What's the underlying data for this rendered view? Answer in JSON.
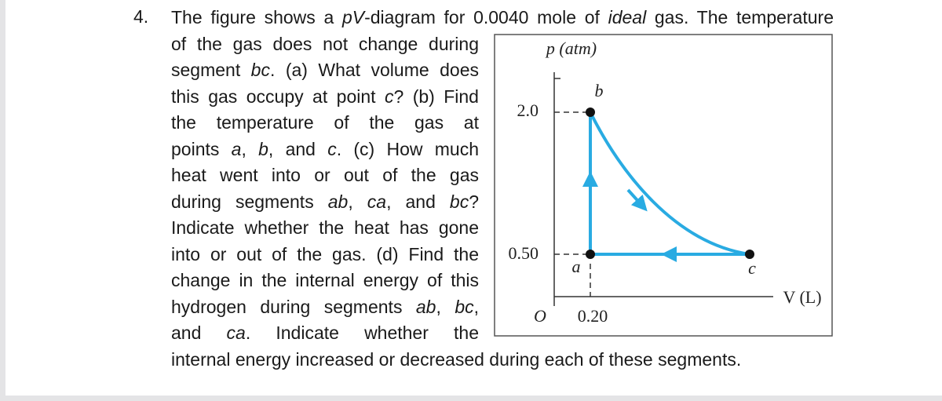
{
  "problem": {
    "number": "4.",
    "lines": [
      [
        "The figure shows a ",
        {
          "text": "pV",
          "style": "italic"
        },
        "-diagram for 0.0040 mole of ",
        {
          "text": "ideal",
          "style": "italic"
        },
        " gas. The temperature"
      ],
      [
        "of the gas does not change during"
      ],
      [
        "segment ",
        {
          "text": "bc",
          "style": "italic"
        },
        ". (a) What volume does"
      ],
      [
        "this gas occupy at point ",
        {
          "text": "c",
          "style": "italic"
        },
        "? (b) Find"
      ],
      [
        "the temperature of the gas at"
      ],
      [
        "points ",
        {
          "text": "a",
          "style": "italic"
        },
        ", ",
        {
          "text": "b",
          "style": "italic"
        },
        ", and ",
        {
          "text": "c",
          "style": "italic"
        },
        ". (c) How much"
      ],
      [
        "heat went into or out of the gas"
      ],
      [
        "during segments ",
        {
          "text": "ab",
          "style": "italic"
        },
        ", ",
        {
          "text": "ca",
          "style": "italic"
        },
        ", and ",
        {
          "text": "bc",
          "style": "italic"
        },
        "?"
      ],
      [
        "Indicate whether the heat has gone"
      ],
      [
        "into or out of the gas. (d) Find the"
      ],
      [
        "change in the internal energy of this"
      ],
      [
        "hydrogen during segments ",
        {
          "text": "ab",
          "style": "italic"
        },
        ", ",
        {
          "text": "bc",
          "style": "italic"
        },
        ","
      ],
      [
        "and ",
        {
          "text": "ca",
          "style": "italic"
        },
        ". Indicate whether the"
      ],
      [
        "internal energy increased or decreased during each of these segments."
      ]
    ]
  },
  "figure": {
    "y_axis_label": "p (atm)",
    "x_axis_label": "V (L)",
    "origin": "O",
    "y_labels": [
      "2.0",
      "0.50"
    ],
    "x_labels": [
      "0.20"
    ],
    "points": [
      "a",
      "b",
      "c"
    ]
  }
}
